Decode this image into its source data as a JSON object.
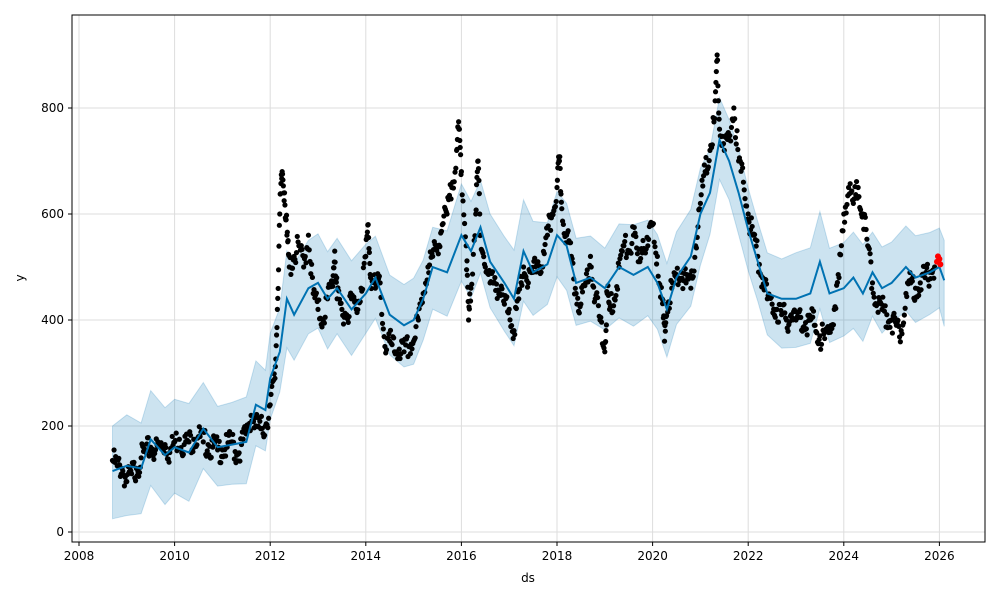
{
  "chart_data": {
    "type": "scatter",
    "title": "",
    "xlabel": "ds",
    "ylabel": "y",
    "xlim": [
      2007.9,
      2027.0
    ],
    "ylim": [
      -20,
      975
    ],
    "grid": true,
    "x_ticks": [
      "2008",
      "2010",
      "2012",
      "2014",
      "2016",
      "2018",
      "2020",
      "2022",
      "2024",
      "2026"
    ],
    "y_ticks": [
      "0",
      "200",
      "400",
      "600",
      "800"
    ],
    "colors": {
      "observed": "#000000",
      "forecast_line": "#0072B2",
      "band": "#0072B2",
      "highlight": "#ff0000"
    },
    "band_halfwidth": 85,
    "forecast": [
      [
        2008.7,
        115
      ],
      [
        2009.0,
        125
      ],
      [
        2009.3,
        120
      ],
      [
        2009.5,
        175
      ],
      [
        2009.8,
        145
      ],
      [
        2010.0,
        160
      ],
      [
        2010.3,
        150
      ],
      [
        2010.6,
        195
      ],
      [
        2010.9,
        160
      ],
      [
        2011.2,
        165
      ],
      [
        2011.5,
        170
      ],
      [
        2011.7,
        240
      ],
      [
        2011.9,
        230
      ],
      [
        2012.0,
        290
      ],
      [
        2012.2,
        340
      ],
      [
        2012.35,
        440
      ],
      [
        2012.5,
        410
      ],
      [
        2012.8,
        460
      ],
      [
        2013.0,
        470
      ],
      [
        2013.2,
        440
      ],
      [
        2013.4,
        460
      ],
      [
        2013.7,
        420
      ],
      [
        2014.0,
        450
      ],
      [
        2014.2,
        480
      ],
      [
        2014.5,
        410
      ],
      [
        2014.8,
        390
      ],
      [
        2015.0,
        400
      ],
      [
        2015.2,
        440
      ],
      [
        2015.4,
        500
      ],
      [
        2015.7,
        490
      ],
      [
        2016.0,
        560
      ],
      [
        2016.2,
        530
      ],
      [
        2016.4,
        575
      ],
      [
        2016.6,
        510
      ],
      [
        2016.9,
        470
      ],
      [
        2017.1,
        440
      ],
      [
        2017.3,
        530
      ],
      [
        2017.5,
        490
      ],
      [
        2017.8,
        505
      ],
      [
        2018.0,
        560
      ],
      [
        2018.2,
        540
      ],
      [
        2018.4,
        470
      ],
      [
        2018.7,
        480
      ],
      [
        2019.0,
        460
      ],
      [
        2019.3,
        500
      ],
      [
        2019.6,
        485
      ],
      [
        2019.9,
        500
      ],
      [
        2020.1,
        470
      ],
      [
        2020.3,
        420
      ],
      [
        2020.5,
        480
      ],
      [
        2020.8,
        520
      ],
      [
        2021.0,
        600
      ],
      [
        2021.2,
        640
      ],
      [
        2021.4,
        740
      ],
      [
        2021.6,
        700
      ],
      [
        2021.8,
        640
      ],
      [
        2022.0,
        570
      ],
      [
        2022.2,
        510
      ],
      [
        2022.4,
        450
      ],
      [
        2022.7,
        440
      ],
      [
        2023.0,
        440
      ],
      [
        2023.3,
        450
      ],
      [
        2023.5,
        510
      ],
      [
        2023.7,
        450
      ],
      [
        2024.0,
        460
      ],
      [
        2024.2,
        480
      ],
      [
        2024.4,
        450
      ],
      [
        2024.6,
        490
      ],
      [
        2024.8,
        460
      ],
      [
        2025.0,
        470
      ],
      [
        2025.3,
        500
      ],
      [
        2025.5,
        480
      ],
      [
        2025.8,
        490
      ],
      [
        2026.0,
        500
      ],
      [
        2026.1,
        475
      ]
    ],
    "observed": [
      [
        2008.7,
        135
      ],
      [
        2008.8,
        125
      ],
      [
        2008.9,
        120
      ],
      [
        2009.0,
        95
      ],
      [
        2009.1,
        110
      ],
      [
        2009.2,
        120
      ],
      [
        2009.3,
        140
      ],
      [
        2009.4,
        150
      ],
      [
        2009.5,
        160
      ],
      [
        2009.6,
        155
      ],
      [
        2009.7,
        160
      ],
      [
        2009.8,
        165
      ],
      [
        2009.9,
        150
      ],
      [
        2010.0,
        170
      ],
      [
        2010.1,
        175
      ],
      [
        2010.2,
        165
      ],
      [
        2010.3,
        170
      ],
      [
        2010.4,
        175
      ],
      [
        2010.5,
        180
      ],
      [
        2010.6,
        170
      ],
      [
        2010.7,
        165
      ],
      [
        2010.8,
        160
      ],
      [
        2010.9,
        155
      ],
      [
        2011.0,
        155
      ],
      [
        2011.1,
        160
      ],
      [
        2011.2,
        170
      ],
      [
        2011.3,
        145
      ],
      [
        2011.4,
        165
      ],
      [
        2011.5,
        185
      ],
      [
        2011.6,
        220
      ],
      [
        2011.7,
        200
      ],
      [
        2011.8,
        195
      ],
      [
        2011.9,
        200
      ],
      [
        2012.0,
        240
      ],
      [
        2012.1,
        290
      ],
      [
        2012.15,
        420
      ],
      [
        2012.2,
        600
      ],
      [
        2012.25,
        680
      ],
      [
        2012.3,
        640
      ],
      [
        2012.35,
        560
      ],
      [
        2012.4,
        500
      ],
      [
        2012.5,
        520
      ],
      [
        2012.6,
        540
      ],
      [
        2012.7,
        500
      ],
      [
        2012.8,
        560
      ],
      [
        2012.9,
        450
      ],
      [
        2013.0,
        420
      ],
      [
        2013.1,
        400
      ],
      [
        2013.2,
        440
      ],
      [
        2013.3,
        470
      ],
      [
        2013.35,
        530
      ],
      [
        2013.4,
        440
      ],
      [
        2013.5,
        420
      ],
      [
        2013.6,
        410
      ],
      [
        2013.7,
        440
      ],
      [
        2013.8,
        420
      ],
      [
        2013.9,
        460
      ],
      [
        2014.0,
        520
      ],
      [
        2014.05,
        580
      ],
      [
        2014.1,
        480
      ],
      [
        2014.2,
        460
      ],
      [
        2014.3,
        470
      ],
      [
        2014.4,
        350
      ],
      [
        2014.5,
        360
      ],
      [
        2014.6,
        340
      ],
      [
        2014.7,
        345
      ],
      [
        2014.8,
        340
      ],
      [
        2014.9,
        350
      ],
      [
        2015.0,
        360
      ],
      [
        2015.1,
        400
      ],
      [
        2015.2,
        450
      ],
      [
        2015.3,
        500
      ],
      [
        2015.4,
        520
      ],
      [
        2015.5,
        540
      ],
      [
        2015.6,
        580
      ],
      [
        2015.7,
        600
      ],
      [
        2015.8,
        650
      ],
      [
        2015.9,
        720
      ],
      [
        2015.95,
        760
      ],
      [
        2016.0,
        680
      ],
      [
        2016.1,
        540
      ],
      [
        2016.15,
        400
      ],
      [
        2016.2,
        460
      ],
      [
        2016.3,
        600
      ],
      [
        2016.35,
        700
      ],
      [
        2016.4,
        560
      ],
      [
        2016.5,
        500
      ],
      [
        2016.6,
        470
      ],
      [
        2016.7,
        480
      ],
      [
        2016.8,
        450
      ],
      [
        2016.9,
        430
      ],
      [
        2017.0,
        420
      ],
      [
        2017.1,
        380
      ],
      [
        2017.2,
        440
      ],
      [
        2017.3,
        500
      ],
      [
        2017.4,
        470
      ],
      [
        2017.5,
        490
      ],
      [
        2017.6,
        510
      ],
      [
        2017.7,
        500
      ],
      [
        2017.8,
        560
      ],
      [
        2017.9,
        600
      ],
      [
        2018.0,
        650
      ],
      [
        2018.05,
        700
      ],
      [
        2018.1,
        610
      ],
      [
        2018.2,
        560
      ],
      [
        2018.3,
        520
      ],
      [
        2018.4,
        450
      ],
      [
        2018.5,
        430
      ],
      [
        2018.6,
        470
      ],
      [
        2018.7,
        520
      ],
      [
        2018.8,
        440
      ],
      [
        2018.9,
        400
      ],
      [
        2019.0,
        340
      ],
      [
        2019.05,
        450
      ],
      [
        2019.1,
        420
      ],
      [
        2019.2,
        440
      ],
      [
        2019.3,
        500
      ],
      [
        2019.4,
        540
      ],
      [
        2019.5,
        530
      ],
      [
        2019.6,
        560
      ],
      [
        2019.7,
        510
      ],
      [
        2019.8,
        550
      ],
      [
        2019.9,
        540
      ],
      [
        2020.0,
        580
      ],
      [
        2020.1,
        520
      ],
      [
        2020.2,
        440
      ],
      [
        2020.25,
        360
      ],
      [
        2020.3,
        430
      ],
      [
        2020.4,
        460
      ],
      [
        2020.5,
        480
      ],
      [
        2020.6,
        490
      ],
      [
        2020.7,
        470
      ],
      [
        2020.8,
        460
      ],
      [
        2020.9,
        540
      ],
      [
        2021.0,
        620
      ],
      [
        2021.1,
        680
      ],
      [
        2021.2,
        720
      ],
      [
        2021.3,
        780
      ],
      [
        2021.35,
        900
      ],
      [
        2021.4,
        760
      ],
      [
        2021.5,
        720
      ],
      [
        2021.6,
        740
      ],
      [
        2021.7,
        800
      ],
      [
        2021.8,
        700
      ],
      [
        2021.9,
        660
      ],
      [
        2022.0,
        600
      ],
      [
        2022.1,
        560
      ],
      [
        2022.2,
        520
      ],
      [
        2022.3,
        480
      ],
      [
        2022.4,
        440
      ],
      [
        2022.5,
        430
      ],
      [
        2022.6,
        420
      ],
      [
        2022.7,
        410
      ],
      [
        2022.8,
        400
      ],
      [
        2022.9,
        410
      ],
      [
        2023.0,
        400
      ],
      [
        2023.1,
        405
      ],
      [
        2023.2,
        395
      ],
      [
        2023.3,
        400
      ],
      [
        2023.4,
        390
      ],
      [
        2023.5,
        370
      ],
      [
        2023.6,
        365
      ],
      [
        2023.7,
        380
      ],
      [
        2023.8,
        420
      ],
      [
        2023.9,
        480
      ],
      [
        2024.0,
        600
      ],
      [
        2024.1,
        650
      ],
      [
        2024.2,
        620
      ],
      [
        2024.3,
        650
      ],
      [
        2024.4,
        600
      ],
      [
        2024.5,
        540
      ],
      [
        2024.6,
        470
      ],
      [
        2024.7,
        430
      ],
      [
        2024.8,
        420
      ],
      [
        2024.9,
        410
      ],
      [
        2025.0,
        400
      ],
      [
        2025.1,
        390
      ],
      [
        2025.2,
        380
      ],
      [
        2025.3,
        450
      ],
      [
        2025.4,
        470
      ],
      [
        2025.5,
        460
      ],
      [
        2025.6,
        470
      ],
      [
        2025.7,
        480
      ],
      [
        2025.8,
        490
      ],
      [
        2025.9,
        500
      ]
    ],
    "highlighted": [
      [
        2025.95,
        510
      ],
      [
        2025.97,
        520
      ],
      [
        2026.0,
        515
      ],
      [
        2026.02,
        505
      ]
    ]
  }
}
